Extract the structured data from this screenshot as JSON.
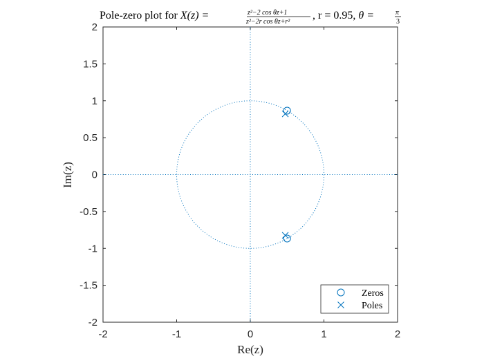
{
  "chart_data": {
    "type": "scatter",
    "title": {
      "prefix": "Pole-zero plot for ",
      "lhs": "X(z) = ",
      "num": "z²−2 cos θz+1",
      "den": "z²−2r cos θz+r²",
      "r_part": ", r = 0.95, ",
      "theta_part": "θ = ",
      "theta_num": "π",
      "theta_den": "3"
    },
    "xlabel": "Re(z)",
    "ylabel": "Im(z)",
    "xlim": [
      -2,
      2
    ],
    "ylim": [
      -2,
      2
    ],
    "xticks": [
      -2,
      -1,
      0,
      1,
      2
    ],
    "xtick_labels": [
      "-2",
      "-1",
      "0",
      "1",
      "2"
    ],
    "yticks": [
      2,
      1.5,
      1,
      0.5,
      0,
      -0.5,
      -1,
      -1.5,
      -2
    ],
    "ytick_labels": [
      "2",
      "1.5",
      "1",
      "0.5",
      "0",
      "-0.5",
      "-1",
      "-1.5",
      "-2"
    ],
    "unit_circle": {
      "radius": 1,
      "style": "dotted"
    },
    "reference_lines": [
      "x = 0",
      "y = 0"
    ],
    "grid": false,
    "series": [
      {
        "name": "Zeros",
        "marker": "circle",
        "x": [
          0.5,
          0.5
        ],
        "y": [
          0.866,
          -0.866
        ]
      },
      {
        "name": "Poles",
        "marker": "x",
        "x": [
          0.475,
          0.475
        ],
        "y": [
          0.823,
          -0.823
        ]
      }
    ],
    "legend": {
      "placement": "bottom-right",
      "entries": [
        "Zeros",
        "Poles"
      ]
    },
    "colors": {
      "marker": "#0072BD",
      "axes": "#262626"
    }
  }
}
